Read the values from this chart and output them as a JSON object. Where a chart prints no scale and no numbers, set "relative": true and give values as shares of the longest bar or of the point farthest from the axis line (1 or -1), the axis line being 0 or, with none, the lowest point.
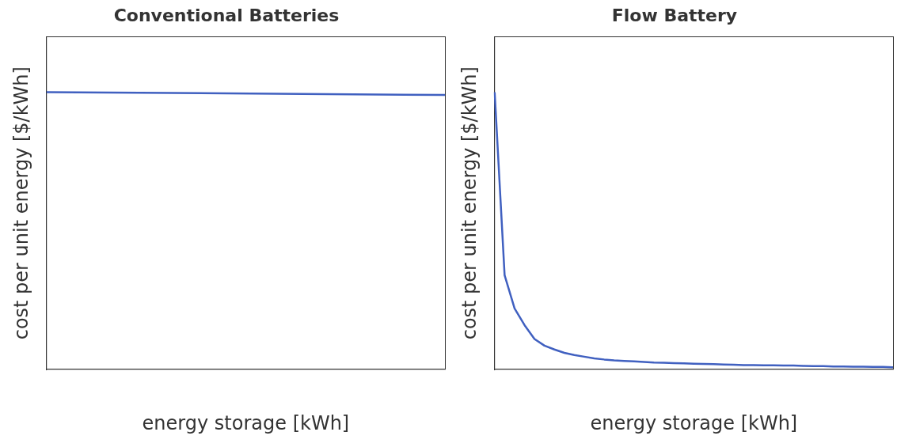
{
  "chart_data": [
    {
      "type": "line",
      "title": "Conventional Batteries",
      "xlabel": "energy storage [kWh]",
      "ylabel": "cost per unit energy [$/kWh]",
      "relative": true,
      "categories": [
        null,
        null
      ],
      "series": [
        {
          "color": "#4060c0",
          "values": [
            1,
            0.99
          ]
        }
      ],
      "marker": "none"
    },
    {
      "type": "line",
      "title": "Flow Battery",
      "xlabel": "energy storage [kWh]",
      "ylabel": "cost per unit energy [$/kWh]",
      "relative": true,
      "categories": [
        null,
        null,
        null,
        null,
        null,
        null,
        null,
        null,
        null,
        null,
        null,
        null,
        null,
        null,
        null,
        null,
        null,
        null,
        null,
        null,
        null,
        null,
        null,
        null,
        null,
        null,
        null,
        null,
        null,
        null,
        null,
        null,
        null,
        null,
        null,
        null,
        null,
        null,
        null,
        null,
        null
      ],
      "series": [
        {
          "color": "#4060c0",
          "values": [
            1,
            0.34,
            0.22,
            0.16,
            0.11,
            0.086,
            0.072,
            0.06,
            0.052,
            0.046,
            0.04,
            0.036,
            0.033,
            0.031,
            0.029,
            0.027,
            0.025,
            0.024,
            0.023,
            0.022,
            0.021,
            0.02,
            0.019,
            0.018,
            0.017,
            0.016,
            0.016,
            0.015,
            0.015,
            0.014,
            0.014,
            0.013,
            0.012,
            0.012,
            0.011,
            0.011,
            0.01,
            0.01,
            0.009,
            0.009,
            0.008
          ]
        }
      ],
      "marker": "none"
    }
  ]
}
